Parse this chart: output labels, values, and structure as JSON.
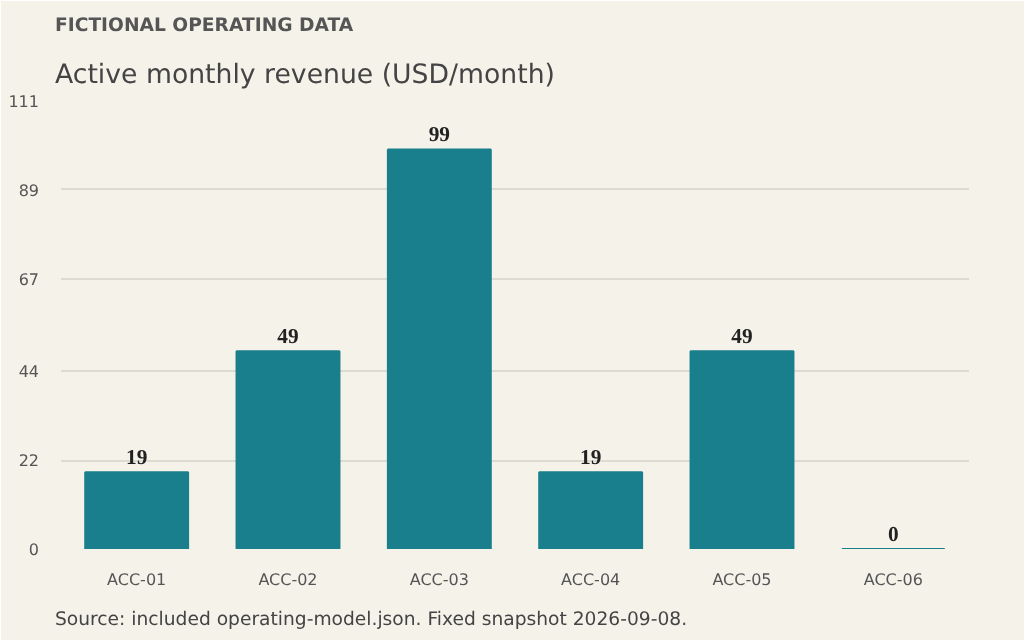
{
  "chart_data": {
    "type": "bar",
    "subtitle": "Active monthly revenue (USD/month)",
    "annotations": [
      "FICTIONAL OPERATING DATA",
      "Source: included operating-model.json. Fixed snapshot 2026-09-08."
    ],
    "categories": [
      "ACC-01",
      "ACC-02",
      "ACC-03",
      "ACC-04",
      "ACC-05",
      "ACC-06"
    ],
    "values": [
      19,
      49,
      99,
      19,
      49,
      0
    ],
    "color": "#1a7f8c",
    "ylim": [
      0,
      111
    ],
    "yticks": [
      0,
      22,
      44,
      67,
      89,
      111
    ],
    "grid": "y",
    "data_labels": true
  }
}
